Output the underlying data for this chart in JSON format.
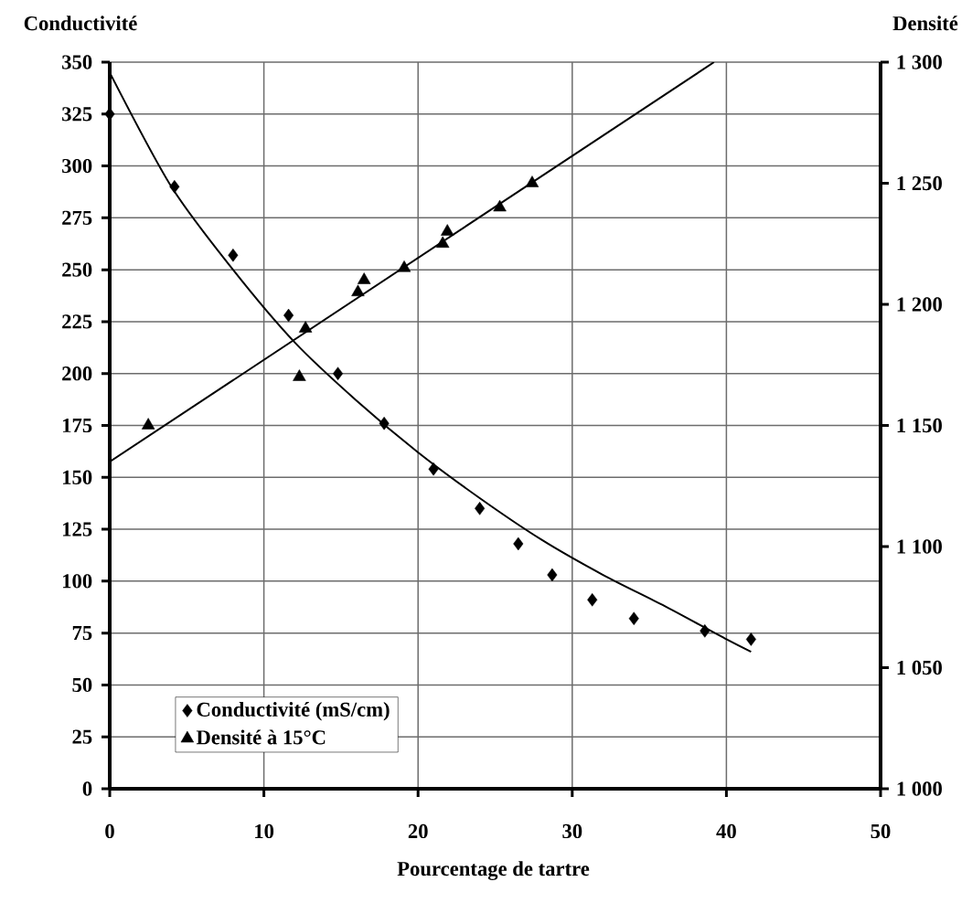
{
  "chart_data": {
    "type": "scatter",
    "xlabel": "Pourcentage de tartre",
    "ylabel": "Conductivité",
    "y2label": "Densité",
    "xlim": [
      0,
      50
    ],
    "xticks": [
      0,
      10,
      20,
      30,
      40,
      50
    ],
    "ylim": [
      0,
      350
    ],
    "yticks": [
      0,
      25,
      50,
      75,
      100,
      125,
      150,
      175,
      200,
      225,
      250,
      275,
      300,
      325,
      350
    ],
    "y2lim": [
      1000,
      1300
    ],
    "y2ticks": [
      {
        "value": 1000,
        "label": "1 000"
      },
      {
        "value": 1050,
        "label": "1 050"
      },
      {
        "value": 1100,
        "label": "1 100"
      },
      {
        "value": 1150,
        "label": "1 150"
      },
      {
        "value": 1200,
        "label": "1 200"
      },
      {
        "value": 1250,
        "label": "1 250"
      },
      {
        "value": 1300,
        "label": "1 300"
      }
    ],
    "grid": true,
    "legend": "bottom left",
    "series": [
      {
        "name": "Conductivité (mS/cm)",
        "marker": "diamond",
        "color": "#000000",
        "x": [
          0,
          4.2,
          8,
          11.6,
          14.8,
          17.8,
          21,
          24,
          26.5,
          28.7,
          31.3,
          34,
          38.6,
          41.6
        ],
        "values": [
          325,
          290,
          257,
          228,
          200,
          176,
          154,
          135,
          118,
          103,
          91,
          82,
          76,
          72
        ]
      },
      {
        "name": "Densité à 15°C",
        "marker": "triangle",
        "axis": "y2",
        "color": "#000000",
        "x": [
          2.5,
          12.3,
          12.7,
          16.1,
          16.5,
          19.1,
          21.6,
          21.9,
          25.3,
          27.4
        ],
        "values": [
          1150,
          1170,
          1190,
          1205,
          1210,
          1215,
          1225,
          1230,
          1240,
          1250
        ]
      },
      {
        "type": "line",
        "marker": "none",
        "line_style": "solid",
        "color": "#000000",
        "x": [
          0,
          4,
          8,
          12,
          16,
          20,
          24,
          28,
          32,
          36,
          40,
          41.6
        ],
        "values": [
          345,
          290,
          250,
          215,
          187,
          162,
          140,
          120,
          103,
          88,
          72,
          66
        ]
      },
      {
        "type": "line",
        "marker": "none",
        "line_style": "solid",
        "axis": "y2",
        "color": "#000000",
        "x": [
          0,
          39.2
        ],
        "values": [
          1135,
          1300
        ]
      }
    ]
  }
}
